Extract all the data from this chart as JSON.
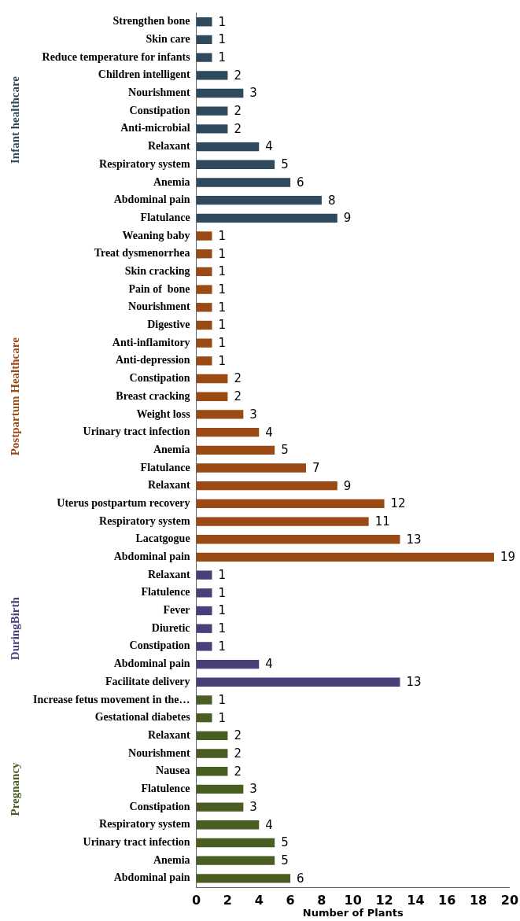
{
  "chart_data": {
    "type": "bar",
    "orientation": "horizontal",
    "xlabel": "Number of Plants",
    "categories": [
      "Strengthen bone",
      "Skin care",
      "Reduce temperature for infants",
      "Children intelligent",
      "Nourishment",
      "Constipation",
      "Anti-microbial",
      "Relaxant",
      "Respiratory system",
      "Anemia",
      "Abdominal pain",
      "Flatulance",
      "Weaning baby",
      "Treat dysmenorrhea",
      "Skin cracking",
      "Pain of  bone",
      "Nourishment",
      "Digestive",
      "Anti-inflamitory",
      "Anti-depression",
      "Constipation",
      "Breast cracking",
      "Weight loss",
      "Urinary tract infection",
      "Anemia",
      "Flatulance",
      "Relaxant",
      "Uterus postpartum recovery",
      "Respiratory system",
      "Lacatgogue",
      "Abdominal pain",
      "Relaxant",
      "Flatulence",
      "Fever",
      "Diuretic",
      "Constipation",
      "Abdominal pain",
      "Facilitate delivery",
      "Increase fetus movement in the…",
      "Gestational diabetes",
      "Relaxant",
      "Nourishment",
      "Nausea",
      "Flatulence",
      "Constipation",
      "Respiratory system",
      "Urinary tract infection",
      "Anemia",
      "Abdominal pain"
    ],
    "series": [
      {
        "name": "Infant healthcare",
        "color": "#2e4a5c",
        "values": [
          1,
          1,
          1,
          2,
          3,
          2,
          2,
          4,
          5,
          6,
          8,
          9,
          null,
          null,
          null,
          null,
          null,
          null,
          null,
          null,
          null,
          null,
          null,
          null,
          null,
          null,
          null,
          null,
          null,
          null,
          null,
          null,
          null,
          null,
          null,
          null,
          null,
          null,
          null,
          null,
          null,
          null,
          null,
          null,
          null,
          null,
          null,
          null,
          null
        ]
      },
      {
        "name": "Postpartum Healthcare",
        "color": "#9a4a14",
        "values": [
          null,
          null,
          null,
          null,
          null,
          null,
          null,
          null,
          null,
          null,
          null,
          null,
          1,
          1,
          1,
          1,
          1,
          1,
          1,
          1,
          2,
          2,
          3,
          4,
          5,
          7,
          9,
          12,
          11,
          13,
          19,
          null,
          null,
          null,
          null,
          null,
          null,
          null,
          null,
          null,
          null,
          null,
          null,
          null,
          null,
          null,
          null,
          null,
          null
        ]
      },
      {
        "name": "DuringBirth",
        "color": "#4b3f7a",
        "values": [
          null,
          null,
          null,
          null,
          null,
          null,
          null,
          null,
          null,
          null,
          null,
          null,
          null,
          null,
          null,
          null,
          null,
          null,
          null,
          null,
          null,
          null,
          null,
          null,
          null,
          null,
          null,
          null,
          null,
          null,
          null,
          1,
          1,
          1,
          1,
          1,
          4,
          13,
          null,
          null,
          null,
          null,
          null,
          null,
          null,
          null,
          null,
          null,
          null
        ]
      },
      {
        "name": "Pregnancy",
        "color": "#4a5e23",
        "values": [
          null,
          null,
          null,
          null,
          null,
          null,
          null,
          null,
          null,
          null,
          null,
          null,
          null,
          null,
          null,
          null,
          null,
          null,
          null,
          null,
          null,
          null,
          null,
          null,
          null,
          null,
          null,
          null,
          null,
          null,
          null,
          null,
          null,
          null,
          null,
          null,
          null,
          null,
          1,
          1,
          2,
          2,
          2,
          3,
          3,
          4,
          5,
          5,
          6
        ]
      }
    ],
    "xlim": [
      0,
      20
    ],
    "xticks": [
      0,
      2,
      4,
      6,
      8,
      10,
      12,
      14,
      16,
      18,
      20
    ],
    "data_labels": true,
    "grid": false,
    "legend": false
  }
}
